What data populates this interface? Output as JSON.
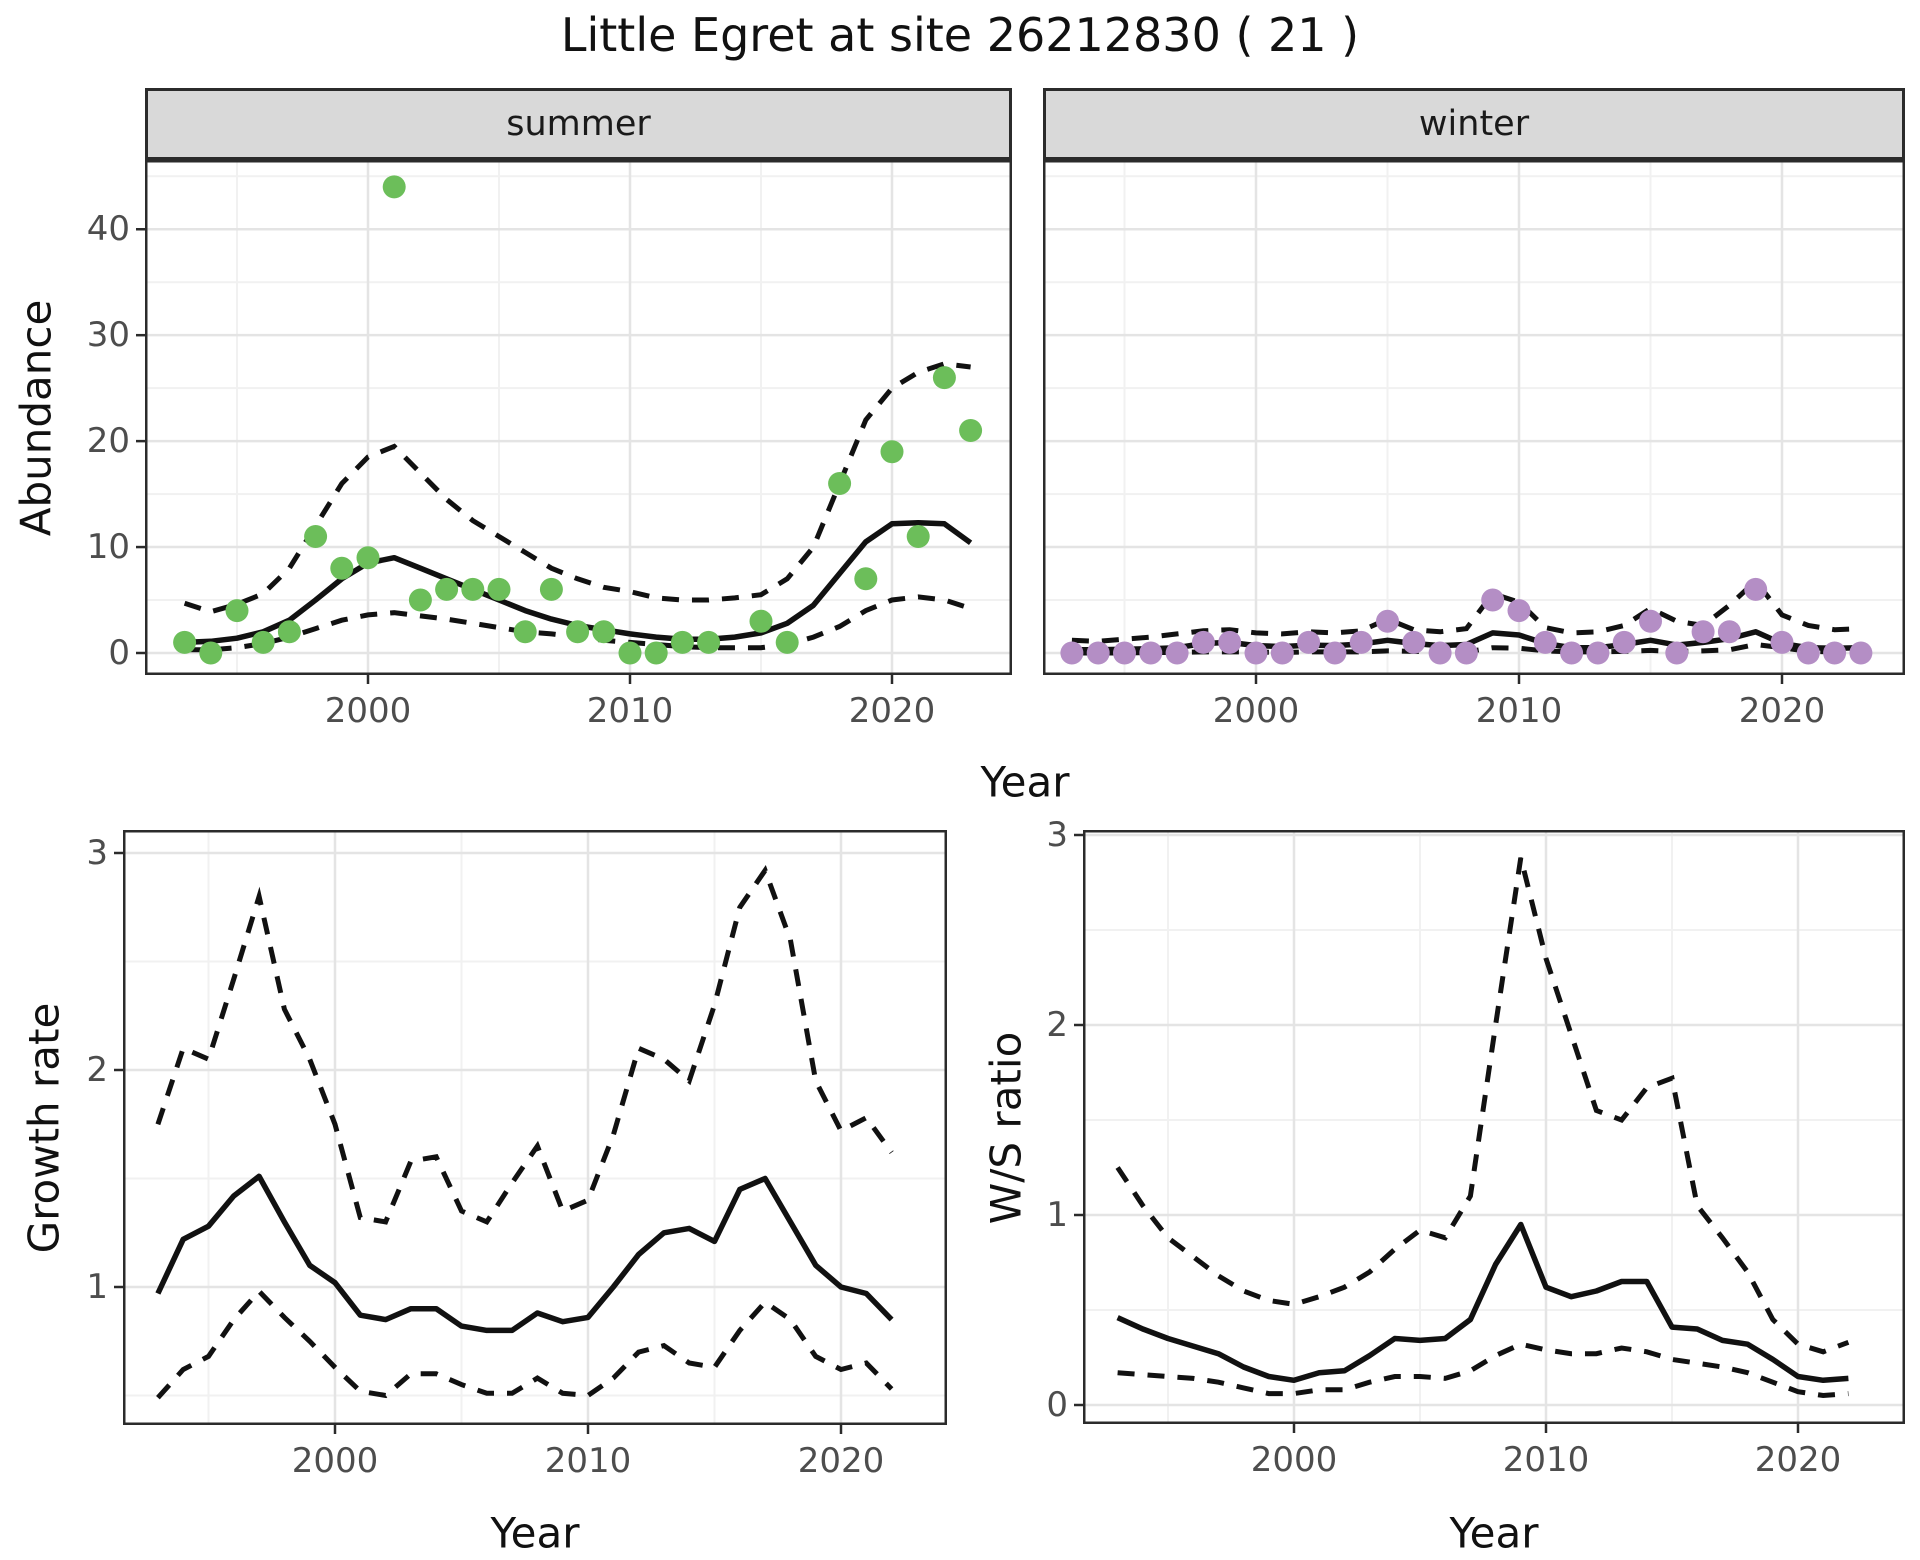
{
  "title": "Little Egret at site 26212830 ( 21 )",
  "facets": [
    {
      "label": "summer"
    },
    {
      "label": "winter"
    }
  ],
  "axis_titles": {
    "abundance": "Abundance",
    "growth": "Growth rate",
    "ws": "W/S ratio",
    "year_top": "Year",
    "year_bottom_left": "Year",
    "year_bottom_right": "Year"
  },
  "colors": {
    "summer_points": "#6CBE5A",
    "winter_points": "#B48EC5",
    "fit_line": "#111111",
    "strip_background": "#d9d9d9",
    "panel_border": "#2b2b2b",
    "grid_major": "#e4e4e4",
    "grid_minor": "#f1f1f1"
  },
  "chart_data": [
    {
      "id": "abundance_summer",
      "type": "scatter",
      "facet": "summer",
      "xlabel": "Year",
      "ylabel": "Abundance",
      "xlim": [
        1991.5,
        2024.5
      ],
      "ylim": [
        -2,
        46.5
      ],
      "x_tick_labels": [
        "2000",
        "2010",
        "2020"
      ],
      "y_tick_labels": [
        "0",
        "10",
        "20",
        "30",
        "40"
      ],
      "points": {
        "years": [
          1993,
          1994,
          1995,
          1996,
          1997,
          1998,
          1999,
          2000,
          2001,
          2002,
          2003,
          2004,
          2005,
          2006,
          2007,
          2008,
          2009,
          2010,
          2011,
          2012,
          2013,
          2015,
          2016,
          2018,
          2019,
          2020,
          2021,
          2022,
          2023
        ],
        "values": [
          1,
          0,
          4,
          1,
          2,
          11,
          8,
          9,
          44,
          5,
          6,
          6,
          6,
          2,
          6,
          2,
          2,
          0,
          0,
          1,
          1,
          3,
          1,
          16,
          7,
          19,
          11,
          26,
          21
        ]
      },
      "fit": {
        "years": [
          1993,
          1994,
          1995,
          1996,
          1997,
          1998,
          1999,
          2000,
          2001,
          2002,
          2003,
          2004,
          2005,
          2006,
          2007,
          2008,
          2009,
          2010,
          2011,
          2012,
          2013,
          2014,
          2015,
          2016,
          2017,
          2018,
          2019,
          2020,
          2021,
          2022,
          2023
        ],
        "mean": [
          1.0,
          1.1,
          1.4,
          2.0,
          3.1,
          5.0,
          7.0,
          8.5,
          9.0,
          8.0,
          7.0,
          6.0,
          5.0,
          4.0,
          3.2,
          2.6,
          2.2,
          1.8,
          1.5,
          1.3,
          1.3,
          1.5,
          1.9,
          2.8,
          4.5,
          7.5,
          10.5,
          12.2,
          12.3,
          12.2,
          10.4
        ],
        "lower": [
          0.3,
          0.3,
          0.5,
          0.9,
          1.5,
          2.3,
          3.1,
          3.6,
          3.8,
          3.5,
          3.2,
          2.8,
          2.4,
          2.0,
          1.8,
          1.5,
          1.2,
          1.0,
          0.8,
          0.6,
          0.5,
          0.5,
          0.5,
          0.8,
          1.5,
          2.5,
          4.0,
          5.0,
          5.3,
          5.0,
          4.2
        ],
        "upper": [
          4.7,
          3.9,
          4.6,
          5.6,
          8.0,
          12.0,
          16.0,
          18.5,
          19.5,
          17.0,
          14.5,
          12.5,
          11.0,
          9.5,
          8.0,
          7.0,
          6.2,
          5.8,
          5.2,
          5.0,
          5.0,
          5.2,
          5.5,
          7.0,
          10.0,
          16.0,
          22.0,
          25.0,
          26.5,
          27.3,
          27.0
        ]
      }
    },
    {
      "id": "abundance_winter",
      "type": "scatter",
      "facet": "winter",
      "xlabel": "Year",
      "ylabel": "Abundance",
      "xlim": [
        1991.5,
        2024.5
      ],
      "ylim": [
        -2,
        46.5
      ],
      "x_tick_labels": [
        "2000",
        "2010",
        "2020"
      ],
      "y_tick_labels": [],
      "points": {
        "years": [
          1993,
          1994,
          1995,
          1996,
          1997,
          1998,
          1999,
          2000,
          2001,
          2002,
          2003,
          2004,
          2005,
          2006,
          2007,
          2008,
          2009,
          2010,
          2011,
          2012,
          2013,
          2014,
          2015,
          2016,
          2017,
          2018,
          2019,
          2020,
          2021,
          2022,
          2023
        ],
        "values": [
          0,
          0,
          0,
          0,
          0,
          1,
          1,
          0,
          0,
          1,
          0,
          1,
          3,
          1,
          0,
          0,
          5,
          4,
          1,
          0,
          0,
          1,
          3,
          0,
          2,
          2,
          6,
          1,
          0,
          0,
          0
        ]
      },
      "fit": {
        "years": [
          1993,
          1994,
          1995,
          1996,
          1997,
          1998,
          1999,
          2000,
          2001,
          2002,
          2003,
          2004,
          2005,
          2006,
          2007,
          2008,
          2009,
          2010,
          2011,
          2012,
          2013,
          2014,
          2015,
          2016,
          2017,
          2018,
          2019,
          2020,
          2021,
          2022,
          2023
        ],
        "mean": [
          0.3,
          0.3,
          0.35,
          0.4,
          0.5,
          0.9,
          1.0,
          0.7,
          0.6,
          0.75,
          0.7,
          0.85,
          1.2,
          0.9,
          0.7,
          0.8,
          1.9,
          1.7,
          0.9,
          0.5,
          0.5,
          0.8,
          1.2,
          0.75,
          1.0,
          1.35,
          2.0,
          0.9,
          0.5,
          0.45,
          0.5
        ],
        "lower": [
          0.0,
          0.0,
          0.0,
          0.05,
          0.05,
          0.1,
          0.1,
          0.1,
          0.05,
          0.1,
          0.1,
          0.1,
          0.2,
          0.15,
          0.1,
          0.1,
          0.5,
          0.45,
          0.2,
          0.1,
          0.1,
          0.15,
          0.25,
          0.15,
          0.2,
          0.3,
          0.8,
          0.5,
          0.15,
          0.1,
          0.1
        ],
        "upper": [
          1.2,
          1.1,
          1.3,
          1.5,
          1.8,
          2.1,
          2.2,
          1.9,
          1.8,
          2.0,
          1.9,
          2.1,
          3.2,
          2.2,
          2.0,
          2.3,
          5.6,
          4.8,
          2.4,
          1.9,
          2.0,
          2.6,
          4.2,
          3.0,
          2.6,
          4.5,
          6.8,
          3.6,
          2.6,
          2.2,
          2.3
        ]
      }
    },
    {
      "id": "growth_rate",
      "type": "line",
      "xlabel": "Year",
      "ylabel": "Growth rate",
      "xlim": [
        1991.5,
        2024.5
      ],
      "ylim": [
        0.37,
        3.1
      ],
      "x_tick_labels": [
        "2000",
        "2010",
        "2020"
      ],
      "y_tick_labels": [
        "1",
        "2",
        "3"
      ],
      "fit": {
        "years": [
          1993,
          1994,
          1995,
          1996,
          1997,
          1998,
          1999,
          2000,
          2001,
          2002,
          2003,
          2004,
          2005,
          2006,
          2007,
          2008,
          2009,
          2010,
          2011,
          2012,
          2013,
          2014,
          2015,
          2016,
          2017,
          2018,
          2019,
          2020,
          2021,
          2022
        ],
        "mean": [
          0.97,
          1.22,
          1.28,
          1.42,
          1.51,
          1.3,
          1.1,
          1.02,
          0.87,
          0.85,
          0.9,
          0.9,
          0.82,
          0.8,
          0.8,
          0.88,
          0.84,
          0.86,
          1.0,
          1.15,
          1.25,
          1.27,
          1.21,
          1.45,
          1.5,
          1.3,
          1.1,
          1.0,
          0.97,
          0.85
        ],
        "lower": [
          0.49,
          0.62,
          0.68,
          0.85,
          0.98,
          0.86,
          0.75,
          0.63,
          0.52,
          0.5,
          0.6,
          0.6,
          0.55,
          0.51,
          0.51,
          0.58,
          0.51,
          0.5,
          0.58,
          0.7,
          0.73,
          0.65,
          0.63,
          0.8,
          0.93,
          0.85,
          0.68,
          0.62,
          0.65,
          0.53
        ],
        "upper": [
          1.75,
          2.1,
          2.05,
          2.42,
          2.8,
          2.28,
          2.05,
          1.75,
          1.32,
          1.3,
          1.58,
          1.6,
          1.35,
          1.3,
          1.48,
          1.65,
          1.35,
          1.4,
          1.7,
          2.1,
          2.05,
          1.95,
          2.3,
          2.75,
          2.92,
          2.6,
          1.95,
          1.72,
          1.78,
          1.62
        ]
      }
    },
    {
      "id": "ws_ratio",
      "type": "line",
      "xlabel": "Year",
      "ylabel": "W/S ratio",
      "xlim": [
        1991.5,
        2024.5
      ],
      "ylim": [
        -0.1,
        3.05
      ],
      "x_tick_labels": [
        "2000",
        "2010",
        "2020"
      ],
      "y_tick_labels": [
        "0",
        "1",
        "2",
        "3"
      ],
      "fit": {
        "years": [
          1993,
          1994,
          1995,
          1996,
          1997,
          1998,
          1999,
          2000,
          2001,
          2002,
          2003,
          2004,
          2005,
          2006,
          2007,
          2008,
          2009,
          2010,
          2011,
          2012,
          2013,
          2014,
          2015,
          2016,
          2017,
          2018,
          2019,
          2020,
          2021,
          2022
        ],
        "mean": [
          0.46,
          0.4,
          0.35,
          0.31,
          0.27,
          0.2,
          0.15,
          0.13,
          0.17,
          0.18,
          0.26,
          0.35,
          0.34,
          0.35,
          0.45,
          0.74,
          0.95,
          0.62,
          0.57,
          0.6,
          0.65,
          0.65,
          0.41,
          0.4,
          0.34,
          0.32,
          0.24,
          0.15,
          0.13,
          0.14
        ],
        "lower": [
          0.17,
          0.16,
          0.15,
          0.14,
          0.12,
          0.09,
          0.06,
          0.06,
          0.08,
          0.08,
          0.12,
          0.15,
          0.15,
          0.14,
          0.18,
          0.26,
          0.32,
          0.29,
          0.27,
          0.27,
          0.3,
          0.28,
          0.24,
          0.22,
          0.2,
          0.17,
          0.12,
          0.07,
          0.05,
          0.06
        ],
        "upper": [
          1.25,
          1.05,
          0.88,
          0.78,
          0.68,
          0.6,
          0.55,
          0.53,
          0.57,
          0.62,
          0.7,
          0.82,
          0.92,
          0.88,
          1.1,
          2.0,
          2.88,
          2.35,
          1.95,
          1.55,
          1.5,
          1.67,
          1.72,
          1.05,
          0.88,
          0.7,
          0.45,
          0.32,
          0.28,
          0.33
        ]
      }
    }
  ]
}
